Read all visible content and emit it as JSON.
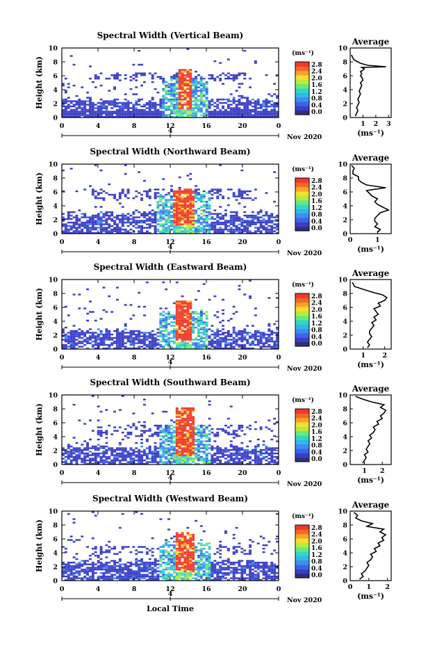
{
  "figure": {
    "xlabel": "Local Time",
    "date_label": "Nov 2020",
    "day_label": "4"
  },
  "colorbar": {
    "unit": "(ms⁻¹)",
    "ticks": [
      "0.0",
      "0.4",
      "0.8",
      "1.2",
      "1.6",
      "2.0",
      "2.4",
      "2.8"
    ],
    "colors": [
      "#30307a",
      "#3a3ec8",
      "#3c64e8",
      "#3c8ef0",
      "#34b6e6",
      "#2fd8c4",
      "#6ae87c",
      "#b8ec3c",
      "#f4e030",
      "#f8a428",
      "#f46828",
      "#f03a2a"
    ]
  },
  "chart_data": [
    {
      "type": "heatmap",
      "title": "Spectral Width (Vertical Beam)",
      "ylabel": "Height (km)",
      "xlim": [
        0,
        24
      ],
      "ylim": [
        0,
        10
      ],
      "xticks": [
        "0",
        "4",
        "8",
        "12",
        "16",
        "20",
        "0"
      ],
      "yticks": [
        "0",
        "2",
        "4",
        "6",
        "8",
        "10"
      ],
      "layer_top_km": 2.6,
      "upper_layer_km": [
        5.6,
        6.5
      ],
      "core": {
        "x": [
          12.7,
          14.3
        ],
        "y_top": 7.0
      },
      "profile": {
        "title": "Average",
        "xlabel": "(ms⁻¹)",
        "xlim": [
          0,
          3.2
        ],
        "xticks": [
          "1",
          "2",
          "3"
        ],
        "yticks": [
          "0",
          "2",
          "4",
          "6",
          "8",
          "10"
        ],
        "x": [
          0.4,
          0.5,
          0.6,
          0.5,
          0.6,
          0.7,
          0.6,
          0.7,
          0.8,
          0.7,
          0.8,
          0.9,
          0.8,
          1.0,
          0.9,
          0.8,
          0.9,
          0.8,
          1.0,
          1.1,
          0.9,
          2.8,
          1.4,
          0.8,
          0.6,
          0.3,
          0.2,
          0.1
        ],
        "y": [
          0.2,
          0.6,
          1.0,
          1.4,
          1.8,
          2.2,
          2.6,
          3.0,
          3.4,
          3.8,
          4.2,
          4.6,
          5.0,
          5.4,
          5.8,
          6.0,
          6.3,
          6.6,
          6.8,
          7.0,
          7.2,
          7.3,
          7.5,
          7.8,
          8.0,
          8.3,
          8.6,
          9.0
        ]
      }
    },
    {
      "type": "heatmap",
      "title": "Spectral Width (Northward Beam)",
      "ylabel": "Height (km)",
      "xlim": [
        0,
        24
      ],
      "ylim": [
        0,
        10
      ],
      "xticks": [
        "0",
        "4",
        "8",
        "12",
        "16",
        "20",
        "0"
      ],
      "yticks": [
        "0",
        "2",
        "4",
        "6",
        "8",
        "10"
      ],
      "layer_top_km": 3.0,
      "upper_layer_km": [
        5.0,
        6.5
      ],
      "core": {
        "x": [
          12.3,
          14.5
        ],
        "y_top": 6.5
      },
      "profile": {
        "title": "Average",
        "xlabel": "(ms⁻¹)",
        "xlim": [
          0,
          1.5
        ],
        "xticks": [
          "0",
          "1"
        ],
        "yticks": [
          "0",
          "2",
          "4",
          "6",
          "8",
          "10"
        ],
        "x": [
          1.0,
          1.1,
          0.9,
          1.0,
          0.9,
          0.9,
          1.0,
          1.1,
          1.4,
          1.2,
          1.0,
          0.9,
          1.0,
          0.8,
          0.7,
          0.6,
          1.3,
          0.6,
          0.4,
          0.3,
          0.3,
          0.1,
          0.1,
          0.15,
          0.05
        ],
        "y": [
          0.2,
          0.6,
          1.0,
          1.4,
          1.8,
          2.2,
          2.6,
          3.0,
          3.4,
          3.8,
          4.2,
          4.6,
          5.0,
          5.4,
          5.8,
          6.2,
          6.6,
          7.0,
          7.4,
          7.8,
          8.2,
          8.6,
          9.0,
          9.4,
          9.8
        ]
      }
    },
    {
      "type": "heatmap",
      "title": "Spectral Width (Eastward Beam)",
      "ylabel": "Height (km)",
      "xlim": [
        0,
        24
      ],
      "ylim": [
        0,
        10
      ],
      "xticks": [
        "0",
        "4",
        "8",
        "12",
        "16",
        "20",
        "0"
      ],
      "yticks": [
        "0",
        "2",
        "4",
        "6",
        "8",
        "10"
      ],
      "layer_top_km": 2.7,
      "upper_layer_km": [
        0,
        0
      ],
      "core": {
        "x": [
          12.6,
          14.3
        ],
        "y_top": 7.0
      },
      "profile": {
        "title": "Average",
        "xlabel": "(ms⁻¹)",
        "xlim": [
          0.4,
          2.3
        ],
        "xticks": [
          "1",
          "2"
        ],
        "yticks": [
          "0",
          "2",
          "4",
          "6",
          "8",
          "10"
        ],
        "x": [
          1.2,
          1.3,
          1.2,
          1.3,
          1.4,
          1.3,
          1.3,
          1.4,
          1.5,
          1.4,
          1.6,
          1.5,
          1.7,
          1.6,
          1.5,
          1.8,
          1.7,
          2.0,
          2.1,
          1.9,
          1.4,
          1.0,
          0.6,
          0.5
        ],
        "y": [
          0.2,
          0.6,
          1.0,
          1.4,
          1.8,
          2.2,
          2.6,
          3.0,
          3.4,
          3.8,
          4.2,
          4.6,
          5.0,
          5.4,
          5.8,
          6.2,
          6.6,
          7.0,
          7.4,
          7.8,
          8.2,
          8.6,
          9.0,
          9.6
        ]
      }
    },
    {
      "type": "heatmap",
      "title": "Spectral Width (Southward Beam)",
      "ylabel": "Height (km)",
      "xlim": [
        0,
        24
      ],
      "ylim": [
        0,
        10
      ],
      "xticks": [
        "0",
        "4",
        "8",
        "12",
        "16",
        "20",
        "0"
      ],
      "yticks": [
        "0",
        "2",
        "4",
        "6",
        "8",
        "10"
      ],
      "layer_top_km": 2.6,
      "upper_layer_km": [
        4.0,
        5.8
      ],
      "core": {
        "x": [
          12.5,
          14.5
        ],
        "y_top": 8.2
      },
      "profile": {
        "title": "Average",
        "xlabel": "(ms⁻¹)",
        "xlim": [
          0.2,
          2.5
        ],
        "xticks": [
          "1",
          "2"
        ],
        "yticks": [
          "0",
          "2",
          "4",
          "6",
          "8",
          "10"
        ],
        "x": [
          0.9,
          1.0,
          1.1,
          1.0,
          1.2,
          1.1,
          1.2,
          1.3,
          1.2,
          1.4,
          1.3,
          1.5,
          1.6,
          1.5,
          1.8,
          1.7,
          2.0,
          1.9,
          2.1,
          2.2,
          1.9,
          2.1,
          1.4,
          0.9,
          0.5
        ],
        "y": [
          0.2,
          0.6,
          1.0,
          1.4,
          1.8,
          2.2,
          2.6,
          3.0,
          3.4,
          3.8,
          4.2,
          4.6,
          5.0,
          5.4,
          5.8,
          6.2,
          6.6,
          7.0,
          7.4,
          7.8,
          8.2,
          8.6,
          9.0,
          9.4,
          9.8
        ]
      }
    },
    {
      "type": "heatmap",
      "title": "Spectral Width (Westward Beam)",
      "ylabel": "Height (km)",
      "xlim": [
        0,
        24
      ],
      "ylim": [
        0,
        10
      ],
      "xticks": [
        "0",
        "4",
        "8",
        "12",
        "16",
        "20",
        "0"
      ],
      "yticks": [
        "0",
        "2",
        "4",
        "6",
        "8",
        "10"
      ],
      "layer_top_km": 2.8,
      "upper_layer_km": [
        3.8,
        5.0
      ],
      "core": {
        "x": [
          12.4,
          14.6
        ],
        "y_top": 7.0
      },
      "profile": {
        "title": "Average",
        "xlabel": "(ms⁻¹)",
        "xlim": [
          0,
          2.2
        ],
        "xticks": [
          "0",
          "1",
          "2"
        ],
        "yticks": [
          "0",
          "2",
          "4",
          "6",
          "8",
          "10"
        ],
        "x": [
          0.5,
          0.7,
          0.6,
          0.8,
          0.9,
          1.0,
          0.9,
          1.1,
          1.2,
          1.1,
          1.4,
          1.3,
          1.6,
          1.5,
          1.8,
          1.7,
          1.9,
          1.6,
          1.8,
          0.9,
          1.2,
          0.6,
          0.3,
          0.4,
          0.2
        ],
        "y": [
          0.2,
          0.6,
          1.0,
          1.4,
          1.8,
          2.2,
          2.6,
          3.0,
          3.4,
          3.8,
          4.2,
          4.6,
          5.0,
          5.4,
          5.8,
          6.2,
          6.6,
          7.0,
          7.4,
          7.8,
          8.2,
          8.6,
          9.0,
          9.4,
          9.8
        ]
      }
    }
  ]
}
